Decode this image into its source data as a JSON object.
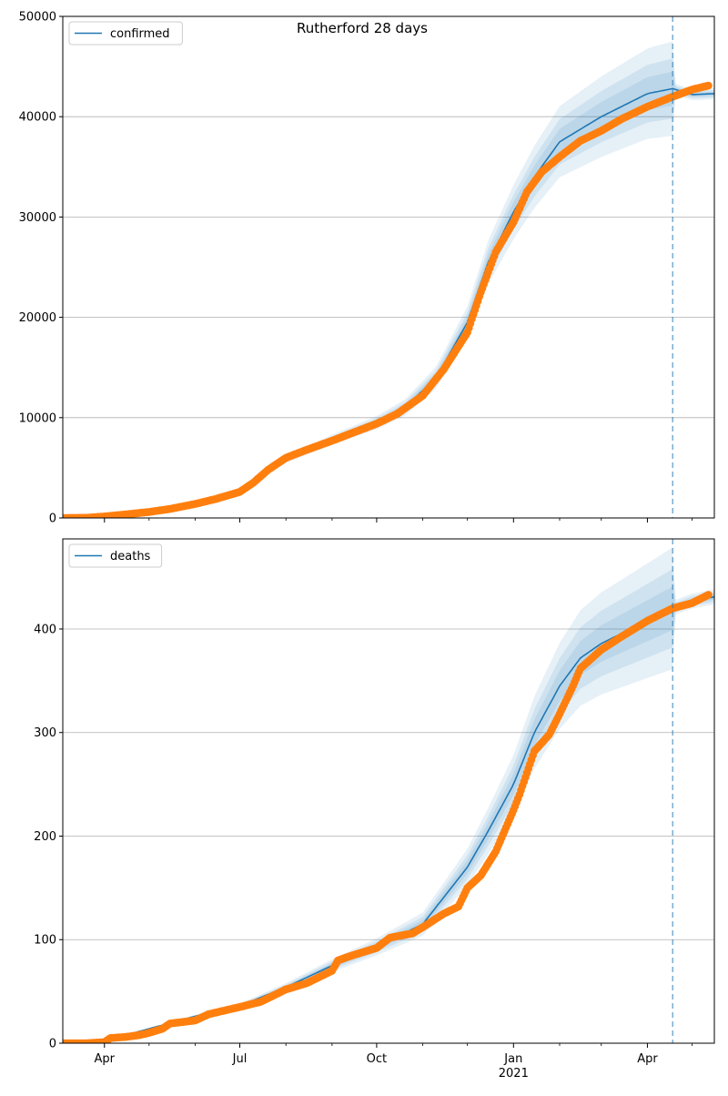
{
  "figure_title": "Rutherford 28 days",
  "colors": {
    "model_line": "#1f77b4",
    "band": "#1f77b4",
    "observed": "#ff7f0e",
    "forecast_marker": "#1f77b4",
    "grid": "#b0b0b0",
    "axis": "#000000"
  },
  "x_axis": {
    "major_ticks": [
      {
        "date": "2020-04-01",
        "label": "Apr",
        "sublabel": ""
      },
      {
        "date": "2020-07-01",
        "label": "Jul",
        "sublabel": ""
      },
      {
        "date": "2020-10-01",
        "label": "Oct",
        "sublabel": ""
      },
      {
        "date": "2021-01-01",
        "label": "Jan",
        "sublabel": "2021"
      },
      {
        "date": "2021-04-01",
        "label": "Apr",
        "sublabel": ""
      }
    ],
    "minor_ticks": [
      "2020-05-01",
      "2020-06-01",
      "2020-08-01",
      "2020-09-01",
      "2020-11-01",
      "2020-12-01",
      "2021-02-01",
      "2021-03-01",
      "2021-05-01"
    ]
  },
  "chart_data": [
    {
      "type": "line",
      "legend": "confirmed",
      "legend_position": "top-left",
      "xlim": [
        "2020-03-04",
        "2021-05-16"
      ],
      "ylim": [
        0,
        50000
      ],
      "yticks": [
        0,
        10000,
        20000,
        30000,
        40000,
        50000
      ],
      "grid": "horizontal",
      "forecast_start": "2021-04-18",
      "model_curve": [
        [
          "2020-03-04",
          0
        ],
        [
          "2020-04-01",
          150
        ],
        [
          "2020-05-01",
          700
        ],
        [
          "2020-06-01",
          1500
        ],
        [
          "2020-07-01",
          2600
        ],
        [
          "2020-07-15",
          4200
        ],
        [
          "2020-08-01",
          5800
        ],
        [
          "2020-09-01",
          7800
        ],
        [
          "2020-10-01",
          9500
        ],
        [
          "2020-10-20",
          11000
        ],
        [
          "2020-11-10",
          14000
        ],
        [
          "2020-12-01",
          19500
        ],
        [
          "2020-12-15",
          25500
        ],
        [
          "2021-01-01",
          30500
        ],
        [
          "2021-01-15",
          34000
        ],
        [
          "2021-02-01",
          37500
        ],
        [
          "2021-03-01",
          40000
        ],
        [
          "2021-04-01",
          42300
        ],
        [
          "2021-04-18",
          42800
        ],
        [
          "2021-05-01",
          42200
        ],
        [
          "2021-05-16",
          42300
        ]
      ],
      "band_spread_fraction": [
        0.04,
        0.07,
        0.11
      ],
      "observed": [
        [
          "2020-03-04",
          0
        ],
        [
          "2020-03-20",
          20
        ],
        [
          "2020-04-01",
          150
        ],
        [
          "2020-04-15",
          350
        ],
        [
          "2020-05-01",
          600
        ],
        [
          "2020-05-15",
          900
        ],
        [
          "2020-06-01",
          1400
        ],
        [
          "2020-06-15",
          1900
        ],
        [
          "2020-07-01",
          2600
        ],
        [
          "2020-07-10",
          3500
        ],
        [
          "2020-07-20",
          4800
        ],
        [
          "2020-08-01",
          6000
        ],
        [
          "2020-08-15",
          6800
        ],
        [
          "2020-09-01",
          7700
        ],
        [
          "2020-09-15",
          8500
        ],
        [
          "2020-10-01",
          9400
        ],
        [
          "2020-10-15",
          10400
        ],
        [
          "2020-11-01",
          12200
        ],
        [
          "2020-11-15",
          14800
        ],
        [
          "2020-12-01",
          18500
        ],
        [
          "2020-12-10",
          22500
        ],
        [
          "2020-12-20",
          26500
        ],
        [
          "2021-01-01",
          29500
        ],
        [
          "2021-01-10",
          32500
        ],
        [
          "2021-01-20",
          34500
        ],
        [
          "2021-02-01",
          36000
        ],
        [
          "2021-02-15",
          37600
        ],
        [
          "2021-03-01",
          38600
        ],
        [
          "2021-03-15",
          39800
        ],
        [
          "2021-04-01",
          41000
        ],
        [
          "2021-04-18",
          42000
        ],
        [
          "2021-05-01",
          42700
        ],
        [
          "2021-05-12",
          43100
        ]
      ]
    },
    {
      "type": "line",
      "legend": "deaths",
      "legend_position": "top-left",
      "xlim": [
        "2020-03-04",
        "2021-05-16"
      ],
      "ylim": [
        0,
        487
      ],
      "yticks": [
        0,
        100,
        200,
        300,
        400
      ],
      "grid": "horizontal",
      "forecast_start": "2021-04-18",
      "model_curve": [
        [
          "2020-03-04",
          0
        ],
        [
          "2020-04-01",
          2
        ],
        [
          "2020-05-01",
          14
        ],
        [
          "2020-06-01",
          26
        ],
        [
          "2020-07-01",
          36
        ],
        [
          "2020-08-01",
          54
        ],
        [
          "2020-09-01",
          75
        ],
        [
          "2020-10-01",
          93
        ],
        [
          "2020-11-01",
          115
        ],
        [
          "2020-12-01",
          170
        ],
        [
          "2020-12-15",
          205
        ],
        [
          "2021-01-01",
          250
        ],
        [
          "2021-01-15",
          300
        ],
        [
          "2021-02-01",
          345
        ],
        [
          "2021-02-15",
          372
        ],
        [
          "2021-03-01",
          386
        ],
        [
          "2021-04-01",
          408
        ],
        [
          "2021-04-18",
          420
        ],
        [
          "2021-05-01",
          427
        ],
        [
          "2021-05-16",
          431
        ]
      ],
      "band_spread_fraction": [
        0.05,
        0.09,
        0.14
      ],
      "observed": [
        [
          "2020-03-04",
          0
        ],
        [
          "2020-03-20",
          0
        ],
        [
          "2020-04-01",
          1
        ],
        [
          "2020-04-05",
          5
        ],
        [
          "2020-04-15",
          6
        ],
        [
          "2020-04-25",
          8
        ],
        [
          "2020-05-01",
          10
        ],
        [
          "2020-05-10",
          14
        ],
        [
          "2020-05-15",
          19
        ],
        [
          "2020-06-01",
          22
        ],
        [
          "2020-06-10",
          28
        ],
        [
          "2020-07-01",
          35
        ],
        [
          "2020-07-15",
          40
        ],
        [
          "2020-08-01",
          52
        ],
        [
          "2020-08-15",
          58
        ],
        [
          "2020-09-01",
          70
        ],
        [
          "2020-09-05",
          80
        ],
        [
          "2020-09-15",
          85
        ],
        [
          "2020-10-01",
          92
        ],
        [
          "2020-10-10",
          102
        ],
        [
          "2020-10-25",
          106
        ],
        [
          "2020-11-01",
          112
        ],
        [
          "2020-11-15",
          125
        ],
        [
          "2020-11-25",
          132
        ],
        [
          "2020-12-01",
          150
        ],
        [
          "2020-12-10",
          162
        ],
        [
          "2020-12-20",
          185
        ],
        [
          "2021-01-01",
          225
        ],
        [
          "2021-01-05",
          240
        ],
        [
          "2021-01-15",
          282
        ],
        [
          "2021-01-25",
          298
        ],
        [
          "2021-02-01",
          318
        ],
        [
          "2021-02-10",
          345
        ],
        [
          "2021-02-15",
          362
        ],
        [
          "2021-03-01",
          380
        ],
        [
          "2021-03-15",
          393
        ],
        [
          "2021-04-01",
          408
        ],
        [
          "2021-04-18",
          420
        ],
        [
          "2021-05-01",
          425
        ],
        [
          "2021-05-12",
          433
        ]
      ]
    }
  ]
}
